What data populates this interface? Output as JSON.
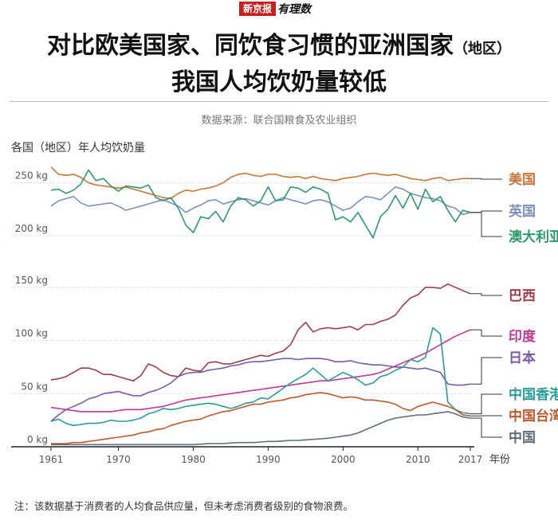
{
  "brand": {
    "left": "新京报",
    "right": "有理数"
  },
  "title": {
    "line1_main": "对比欧美国家、同饮食习惯的亚洲国家",
    "line1_note": "（地区）",
    "line2": "我国人均饮奶量较低"
  },
  "source": "数据来源：联合国粮食及农业组织",
  "note": "注：该数据基于消费者的人均食品供应量，但未考虑消费者级别的食物浪费。",
  "chart_data": {
    "type": "line",
    "ylabel": "各国（地区）年人均饮奶量",
    "xlabel": "年份",
    "x_ticks": [
      "1961",
      "1970",
      "1980",
      "1990",
      "2000",
      "2010",
      "2017"
    ],
    "y_ticks": [
      "0 kg",
      "50 kg",
      "100 kg",
      "150 kg",
      "200 kg",
      "250 kg"
    ],
    "axis_break": "between 150 kg and 200 kg",
    "x": [
      1961,
      1962,
      1963,
      1964,
      1965,
      1966,
      1967,
      1968,
      1969,
      1970,
      1971,
      1972,
      1973,
      1974,
      1975,
      1976,
      1977,
      1978,
      1979,
      1980,
      1981,
      1982,
      1983,
      1984,
      1985,
      1986,
      1987,
      1988,
      1989,
      1990,
      1991,
      1992,
      1993,
      1994,
      1995,
      1996,
      1997,
      1998,
      1999,
      2000,
      2001,
      2002,
      2003,
      2004,
      2005,
      2006,
      2007,
      2008,
      2009,
      2010,
      2011,
      2012,
      2013,
      2014,
      2015,
      2016,
      2017
    ],
    "series": [
      {
        "name": "美国",
        "color": "#c8763a",
        "values": [
          265,
          258,
          257,
          258,
          255,
          250,
          248,
          247,
          246,
          245,
          246,
          244,
          242,
          240,
          238,
          236,
          235,
          240,
          243,
          242,
          244,
          245,
          247,
          250,
          255,
          258,
          259,
          257,
          256,
          258,
          258,
          256,
          255,
          256,
          254,
          256,
          254,
          253,
          252,
          254,
          255,
          256,
          258,
          259,
          258,
          257,
          258,
          256,
          254,
          253,
          252,
          254,
          255,
          252,
          253,
          254,
          254
        ]
      },
      {
        "name": "英国",
        "color": "#7d8fbf",
        "values": [
          228,
          233,
          235,
          237,
          231,
          228,
          229,
          230,
          231,
          228,
          224,
          226,
          228,
          230,
          232,
          234,
          231,
          228,
          222,
          226,
          229,
          233,
          234,
          230,
          232,
          234,
          235,
          233,
          231,
          229,
          233,
          236,
          234,
          232,
          230,
          233,
          234,
          232,
          228,
          224,
          226,
          232,
          237,
          236,
          234,
          240,
          246,
          244,
          240,
          238,
          236,
          235,
          233,
          228,
          226,
          220,
          222
        ]
      },
      {
        "name": "澳大利亚",
        "color": "#2e9a6a",
        "values": [
          243,
          244,
          240,
          243,
          249,
          262,
          252,
          254,
          247,
          242,
          247,
          246,
          245,
          248,
          236,
          233,
          236,
          226,
          210,
          203,
          218,
          216,
          223,
          213,
          228,
          236,
          234,
          228,
          233,
          246,
          233,
          234,
          246,
          245,
          241,
          246,
          244,
          240,
          215,
          218,
          213,
          222,
          210,
          198,
          218,
          225,
          238,
          226,
          240,
          225,
          244,
          232,
          237,
          224,
          213,
          224,
          222
        ]
      },
      {
        "name": "巴西",
        "color": "#9c3f4a",
        "values": [
          63,
          64,
          66,
          70,
          74,
          74,
          72,
          68,
          68,
          66,
          64,
          62,
          67,
          78,
          75,
          70,
          67,
          66,
          74,
          72,
          71,
          79,
          80,
          78,
          78,
          80,
          82,
          84,
          86,
          85,
          88,
          90,
          96,
          110,
          117,
          108,
          111,
          112,
          111,
          112,
          113,
          110,
          115,
          115,
          118,
          120,
          124,
          133,
          140,
          143,
          150,
          150,
          149,
          153,
          150,
          147,
          144
        ]
      },
      {
        "name": "印度",
        "color": "#c23a96",
        "values": [
          37,
          36,
          35,
          34,
          33,
          33,
          33,
          33,
          33,
          34,
          35,
          35,
          35,
          36,
          37,
          38,
          40,
          42,
          44,
          45,
          46,
          47,
          48,
          49,
          50,
          51,
          52,
          53,
          54,
          55,
          56,
          57,
          58,
          59,
          60,
          61,
          62,
          62,
          63,
          64,
          65,
          66,
          67,
          68,
          70,
          73,
          76,
          79,
          82,
          85,
          88,
          92,
          96,
          100,
          104,
          107,
          110
        ]
      },
      {
        "name": "日本",
        "color": "#7a5ba8",
        "values": [
          24,
          30,
          35,
          38,
          41,
          45,
          47,
          50,
          51,
          52,
          50,
          48,
          48,
          51,
          53,
          56,
          60,
          66,
          69,
          70,
          70,
          72,
          73,
          74,
          76,
          77,
          79,
          80,
          80,
          81,
          82,
          83,
          83,
          82,
          83,
          83,
          83,
          82,
          80,
          80,
          81,
          79,
          78,
          77,
          77,
          76,
          75,
          75,
          74,
          73,
          74,
          72,
          70,
          59,
          58,
          58,
          59
        ]
      },
      {
        "name": "中国香港",
        "color": "#2a9d9a",
        "values": [
          24,
          26,
          22,
          20,
          21,
          22,
          22,
          23,
          25,
          24,
          24,
          25,
          27,
          31,
          33,
          36,
          35,
          36,
          38,
          39,
          40,
          41,
          40,
          38,
          36,
          38,
          41,
          42,
          46,
          45,
          50,
          55,
          60,
          64,
          68,
          74,
          68,
          62,
          66,
          70,
          67,
          63,
          58,
          60,
          66,
          68,
          72,
          75,
          82,
          80,
          84,
          112,
          106,
          42,
          35,
          32,
          31
        ]
      },
      {
        "name": "中国台湾",
        "color": "#bd5a2d",
        "values": [
          3,
          3,
          3,
          4,
          4,
          5,
          6,
          7,
          8,
          9,
          10,
          11,
          13,
          14,
          16,
          17,
          20,
          22,
          24,
          25,
          26,
          29,
          31,
          33,
          34,
          36,
          38,
          40,
          40,
          42,
          43,
          44,
          46,
          47,
          49,
          50,
          51,
          50,
          48,
          46,
          47,
          46,
          44,
          44,
          43,
          42,
          40,
          36,
          34,
          38,
          40,
          42,
          40,
          38,
          35,
          30,
          29
        ]
      },
      {
        "name": "中国",
        "color": "#5f6d7c",
        "values": [
          2,
          2,
          2,
          2,
          2,
          2,
          2,
          2,
          2,
          2,
          2,
          2,
          2,
          2,
          2,
          2,
          2,
          2,
          2,
          2,
          2.5,
          3,
          3,
          3,
          3.5,
          4,
          4,
          4,
          4.5,
          5,
          5,
          5.5,
          6,
          6,
          6.5,
          7,
          7.5,
          8,
          9,
          10,
          11,
          13,
          16,
          19,
          22,
          25,
          27,
          28,
          29,
          30,
          30,
          31,
          32,
          33,
          31,
          28,
          27
        ]
      }
    ]
  }
}
